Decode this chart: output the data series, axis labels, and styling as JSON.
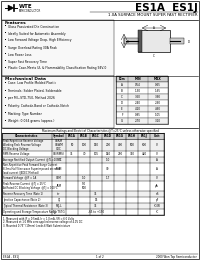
{
  "title1": "ES1A  ES1J",
  "title2": "1.0A SURFACE MOUNT SUPER FAST RECTIFIER",
  "features_title": "Features",
  "features": [
    "Glass Passivated Die Construction",
    "Ideally Suited for Automatic Assembly",
    "Low Forward Voltage Drop, High Efficiency",
    "Surge Overload Rating 30A Peak",
    "Low Power Loss",
    "Super Fast Recovery Time",
    "Plastic Case-Meets UL & Flammability Classification Rating 94V-0"
  ],
  "mech_title": "Mechanical Data",
  "mech": [
    "Case: Low Profile Molded Plastic",
    "Terminals: Solder Plated, Solderable",
    "per MIL-STD-750, Method 2026",
    "Polarity: Cathode-Band or Cathode-Notch",
    "Marking: Type Number",
    "Weight: 0.064 grams (approx.)"
  ],
  "table_title": "Maximum Ratings and Electrical Characteristics @T=25°C unless otherwise specified",
  "col_headers": [
    "Characteristics",
    "Symbol",
    "ES1A",
    "ES1B",
    "ES1C",
    "ES1D",
    "ES1G",
    "ES1H",
    "ES1J",
    "Unit"
  ],
  "rows": [
    [
      "Peak Repetitive Reverse Voltage\nWorking Peak Reverse Voltage\nDC Blocking Voltage",
      "VRRM\nVRWM\nVDC",
      "50",
      "100",
      "150",
      "200",
      "400",
      "500",
      "600",
      "V"
    ],
    [
      "RMS Reverse Voltage",
      "VR(RMS)",
      "35",
      "70",
      "105",
      "140",
      "280",
      "350",
      "420",
      "V"
    ],
    [
      "Average Rectified Output Current  @TL=105°C",
      "IO",
      "",
      "",
      "",
      "1.0",
      "",
      "",
      "",
      "A"
    ],
    [
      "Non-Repetitive Peak Forward Surge Current\n8.3ms Half Sine-wave Superimposed on rated\nload current (JEDEC Method)",
      "IFSM",
      "",
      "",
      "",
      "30",
      "",
      "",
      "",
      "A"
    ],
    [
      "Forward Voltage  @IF = 1A",
      "VFM",
      "",
      "1.0",
      "",
      "1.7",
      "",
      "",
      "",
      "V"
    ],
    [
      "Peak Reverse Current  @TJ = 25°C\nAt Rated DC Blocking Voltage  @TJ = 100°C",
      "IRM",
      "",
      "5.0\n500",
      "",
      "",
      "",
      "",
      "",
      "µA"
    ],
    [
      "Reverse Recovery Time (Note 1)",
      "trr",
      "",
      "",
      "35",
      "",
      "",
      "",
      "",
      "nS"
    ],
    [
      "Junction Capacitance (Note 2)",
      "CJ",
      "",
      "",
      "15",
      "",
      "",
      "",
      "",
      "pF"
    ],
    [
      "Typical Thermal Resistance (Note 3)",
      "RθJ-L",
      "",
      "",
      "35",
      "",
      "",
      "",
      "",
      "°C/W"
    ],
    [
      "Operating and Storage Temperature Range",
      "TJ, TSTG",
      "",
      "",
      "-65 to +150",
      "",
      "",
      "",
      "",
      "°C"
    ]
  ],
  "dim_cols": [
    "Dim",
    "MIN",
    "MAX"
  ],
  "dim_rows": [
    [
      "A",
      "0.54",
      "0.65"
    ],
    [
      "B",
      "1.30",
      "1.65"
    ],
    [
      "C",
      "3.50",
      "3.90"
    ],
    [
      "D",
      "2.40",
      "2.60"
    ],
    [
      "E",
      "4.20",
      "4.60"
    ],
    [
      "F",
      "0.85",
      "1.05"
    ],
    [
      "G",
      "2.70",
      "3.10"
    ]
  ],
  "notes": [
    "1. Measured with IF = 0.5mA, Ir = 1.0 mA, VR = 6.0 Volts",
    "2. Measured at 1.0 MHz zero applied reverse voltage of 4.0V DC",
    "3. Mounted 0.75\" (19mm) Leads 6 Watt Subminiature"
  ],
  "footer_left": "ES1A - ES1J",
  "footer_mid": "1 of 2",
  "footer_right": "2000 Won Top Semiconductor",
  "bg_color": "#ffffff"
}
